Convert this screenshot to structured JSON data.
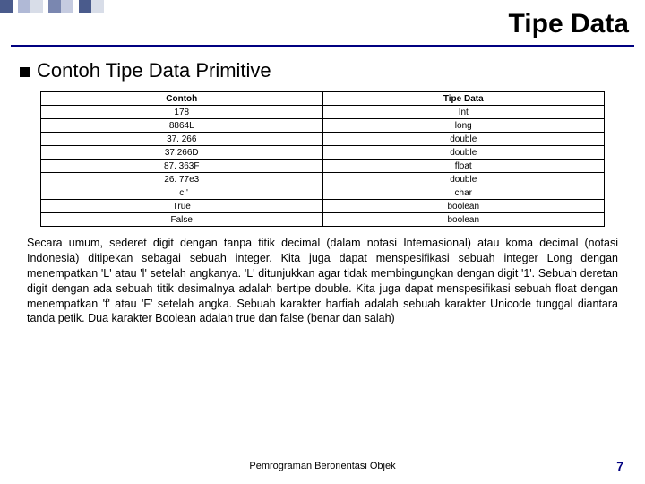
{
  "title": "Tipe Data",
  "section_heading": "Contoh Tipe Data Primitive",
  "table": {
    "headers": [
      "Contoh",
      "Tipe Data"
    ],
    "rows": [
      [
        "178",
        "Int"
      ],
      [
        "8864L",
        "long"
      ],
      [
        "37. 266",
        "double"
      ],
      [
        "37.266D",
        "double"
      ],
      [
        "87. 363F",
        "float"
      ],
      [
        "26. 77e3",
        "double"
      ],
      [
        "' c '",
        "char"
      ],
      [
        "True",
        "boolean"
      ],
      [
        "False",
        "boolean"
      ]
    ]
  },
  "paragraph": "Secara umum, sederet digit dengan tanpa titik decimal (dalam notasi Internasional) atau koma decimal (notasi Indonesia) ditipekan sebagai sebuah integer. Kita juga dapat menspesifikasi sebuah integer Long dengan menempatkan 'L' atau 'l' setelah angkanya. 'L' ditunjukkan agar tidak membingungkan dengan digit '1'. Sebuah deretan digit dengan ada sebuah titik desimalnya adalah bertipe double. Kita juga dapat menspesifikasi sebuah float dengan menempatkan 'f' atau 'F' setelah angka. Sebuah karakter harfiah adalah sebuah karakter Unicode tunggal diantara tanda petik. Dua karakter Boolean adalah true dan false (benar dan salah)",
  "footer_text": "Pemrograman Berorientasi Objek",
  "page_number": "7",
  "decor_squares": [
    {
      "w": 14,
      "c": "#4a5b8c"
    },
    {
      "w": 6,
      "c": "#ffffff"
    },
    {
      "w": 14,
      "c": "#b0b9d6"
    },
    {
      "w": 14,
      "c": "#d8dde8"
    },
    {
      "w": 6,
      "c": "#ffffff"
    },
    {
      "w": 14,
      "c": "#7a87b0"
    },
    {
      "w": 14,
      "c": "#c5cbe0"
    },
    {
      "w": 6,
      "c": "#ffffff"
    },
    {
      "w": 14,
      "c": "#4a5b8c"
    },
    {
      "w": 14,
      "c": "#d8dde8"
    }
  ]
}
